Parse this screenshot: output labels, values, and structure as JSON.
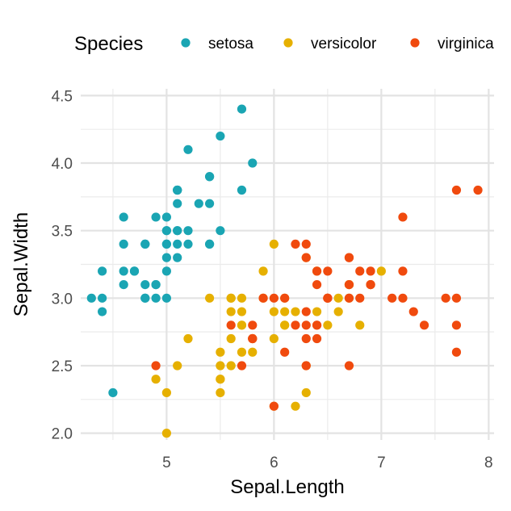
{
  "chart_data": {
    "type": "scatter",
    "xlabel": "Sepal.Length",
    "ylabel": "Sepal.Width",
    "xlim": [
      4.2,
      8.05
    ],
    "ylim": [
      1.95,
      4.55
    ],
    "x_ticks": [
      5,
      6,
      7,
      8
    ],
    "x_tick_labels": [
      "5",
      "6",
      "7",
      "8"
    ],
    "y_ticks": [
      2.0,
      2.5,
      3.0,
      3.5,
      4.0,
      4.5
    ],
    "y_tick_labels": [
      "2.0",
      "2.5",
      "3.0",
      "3.5",
      "4.0",
      "4.5"
    ],
    "grid": true,
    "legend": {
      "title": "Species",
      "position": "top"
    },
    "series": [
      {
        "name": "setosa",
        "color": "#1aa5b3",
        "x": [
          5.1,
          4.9,
          4.7,
          4.6,
          5.0,
          5.4,
          4.6,
          5.0,
          4.4,
          4.9,
          5.4,
          4.8,
          4.8,
          4.3,
          5.8,
          5.7,
          5.4,
          5.1,
          5.7,
          5.1,
          5.4,
          5.1,
          4.6,
          5.1,
          4.8,
          5.0,
          5.0,
          5.2,
          5.2,
          4.7,
          4.8,
          5.4,
          5.2,
          5.5,
          4.9,
          5.0,
          5.5,
          4.9,
          4.4,
          5.1,
          5.0,
          4.5,
          4.4,
          5.0,
          5.1,
          4.8,
          5.1,
          4.6,
          5.3,
          5.0
        ],
        "y": [
          3.5,
          3.0,
          3.2,
          3.1,
          3.6,
          3.9,
          3.4,
          3.4,
          2.9,
          3.1,
          3.7,
          3.4,
          3.0,
          3.0,
          4.0,
          4.4,
          3.9,
          3.5,
          3.8,
          3.8,
          3.4,
          3.7,
          3.6,
          3.3,
          3.4,
          3.0,
          3.4,
          3.5,
          3.4,
          3.2,
          3.1,
          3.4,
          4.1,
          4.2,
          3.1,
          3.2,
          3.5,
          3.6,
          3.0,
          3.4,
          3.5,
          2.3,
          3.2,
          3.5,
          3.8,
          3.0,
          3.8,
          3.2,
          3.7,
          3.3
        ]
      },
      {
        "name": "versicolor",
        "color": "#e6b000",
        "x": [
          7.0,
          6.4,
          6.9,
          5.5,
          6.5,
          5.7,
          6.3,
          4.9,
          6.6,
          5.2,
          5.0,
          5.9,
          6.0,
          6.1,
          5.6,
          6.7,
          5.6,
          5.8,
          6.2,
          5.6,
          5.9,
          6.1,
          6.3,
          6.1,
          6.4,
          6.6,
          6.8,
          6.7,
          6.0,
          5.7,
          5.5,
          5.5,
          5.8,
          6.0,
          5.4,
          6.0,
          6.7,
          6.3,
          5.6,
          5.5,
          5.5,
          6.1,
          5.8,
          5.0,
          5.6,
          5.7,
          5.7,
          6.2,
          5.1,
          5.7
        ],
        "y": [
          3.2,
          3.2,
          3.1,
          2.3,
          2.8,
          2.8,
          3.3,
          2.4,
          2.9,
          2.7,
          2.0,
          3.0,
          2.2,
          2.9,
          2.9,
          3.1,
          3.0,
          2.7,
          2.2,
          2.5,
          3.2,
          2.8,
          2.5,
          2.8,
          2.9,
          3.0,
          2.8,
          3.0,
          2.9,
          2.6,
          2.4,
          2.4,
          2.7,
          2.7,
          3.0,
          3.4,
          3.1,
          2.3,
          3.0,
          2.5,
          2.6,
          3.0,
          2.6,
          2.3,
          2.7,
          3.0,
          2.9,
          2.9,
          2.5,
          2.8
        ]
      },
      {
        "name": "virginica",
        "color": "#f04a0e",
        "x": [
          6.3,
          5.8,
          7.1,
          6.3,
          6.5,
          7.6,
          4.9,
          7.3,
          6.7,
          7.2,
          6.5,
          6.4,
          6.8,
          5.7,
          5.8,
          6.4,
          6.5,
          7.7,
          7.7,
          6.0,
          6.9,
          5.6,
          7.7,
          6.3,
          6.7,
          7.2,
          6.2,
          6.1,
          6.4,
          7.2,
          7.4,
          7.9,
          6.4,
          6.3,
          6.1,
          7.7,
          6.3,
          6.4,
          6.0,
          6.9,
          6.7,
          6.9,
          5.8,
          6.8,
          6.7,
          6.7,
          6.3,
          6.5,
          6.2,
          5.9
        ],
        "y": [
          3.3,
          2.7,
          3.0,
          2.9,
          3.0,
          3.0,
          2.5,
          2.9,
          2.5,
          3.6,
          3.2,
          2.7,
          3.0,
          2.5,
          2.8,
          3.2,
          3.0,
          3.8,
          2.6,
          2.2,
          3.2,
          2.8,
          2.8,
          2.7,
          3.3,
          3.2,
          2.8,
          3.0,
          2.8,
          3.0,
          2.8,
          3.8,
          2.8,
          2.8,
          2.6,
          3.0,
          3.4,
          3.1,
          3.0,
          3.1,
          3.1,
          3.1,
          2.7,
          3.2,
          3.3,
          3.0,
          2.5,
          3.0,
          3.4,
          3.0
        ]
      }
    ]
  }
}
